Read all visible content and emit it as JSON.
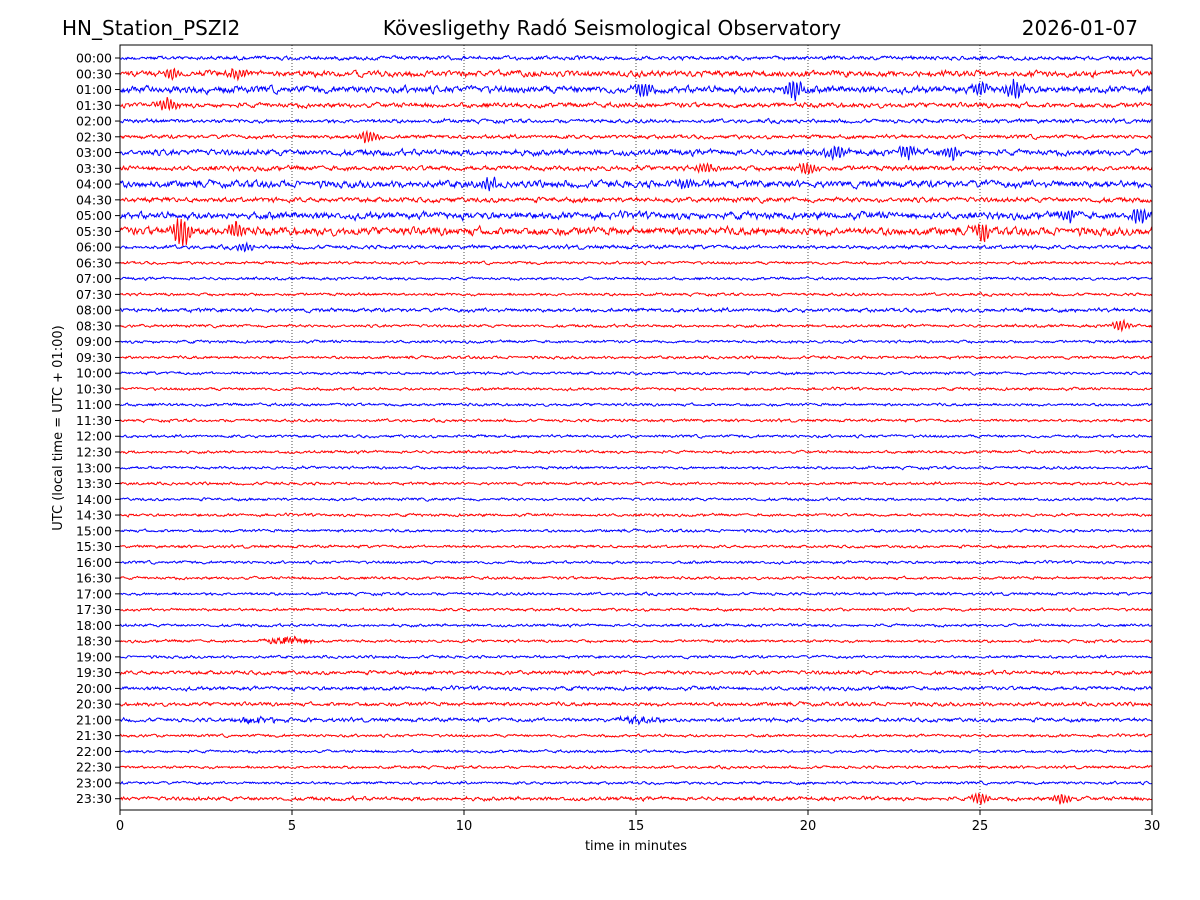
{
  "header": {
    "station": "HN_Station_PSZI2",
    "observatory": "Kövesligethy Radó Seismological Observatory",
    "date": "2026-01-07"
  },
  "chart_data": {
    "type": "line",
    "title": "Kövesligethy Radó Seismological Observatory",
    "xlabel": "time in minutes",
    "ylabel": "UTC (local time = UTC + 01:00)",
    "xlim": [
      0,
      30
    ],
    "x_ticks": [
      "0",
      "5",
      "10",
      "15",
      "20",
      "25",
      "30"
    ],
    "grid": "vertical dotted lines at 5, 10, 15, 20, 25",
    "colors": [
      "#0000ff",
      "#ff0000"
    ],
    "rows": [
      "00:00",
      "00:30",
      "01:00",
      "01:30",
      "02:00",
      "02:30",
      "03:00",
      "03:30",
      "04:00",
      "04:30",
      "05:00",
      "05:30",
      "06:00",
      "06:30",
      "07:00",
      "07:30",
      "08:00",
      "08:30",
      "09:00",
      "09:30",
      "10:00",
      "10:30",
      "11:00",
      "11:30",
      "12:00",
      "12:30",
      "13:00",
      "13:30",
      "14:00",
      "14:30",
      "15:00",
      "15:30",
      "16:00",
      "16:30",
      "17:00",
      "17:30",
      "18:00",
      "18:30",
      "19:00",
      "19:30",
      "20:00",
      "20:30",
      "21:00",
      "21:30",
      "22:00",
      "22:30",
      "23:00",
      "23:30"
    ],
    "activity": [
      2,
      4,
      5,
      3,
      2,
      2,
      4,
      3,
      5,
      3,
      5,
      6,
      2,
      1,
      1,
      1,
      2,
      1,
      1,
      1,
      1,
      1,
      1,
      1,
      1,
      1,
      1,
      1,
      1,
      1,
      1,
      1,
      1,
      1,
      1,
      1,
      1,
      1,
      1,
      2,
      2,
      2,
      2,
      1,
      1,
      1,
      1,
      2
    ],
    "events": [
      {
        "row": "00:30",
        "minute": 1.5,
        "amp": 6
      },
      {
        "row": "00:30",
        "minute": 3.4,
        "amp": 5
      },
      {
        "row": "01:00",
        "minute": 15.2,
        "amp": 7
      },
      {
        "row": "01:00",
        "minute": 19.6,
        "amp": 9
      },
      {
        "row": "01:00",
        "minute": 25.0,
        "amp": 7
      },
      {
        "row": "01:00",
        "minute": 26.0,
        "amp": 9
      },
      {
        "row": "01:30",
        "minute": 1.4,
        "amp": 6
      },
      {
        "row": "02:30",
        "minute": 7.2,
        "amp": 6
      },
      {
        "row": "03:00",
        "minute": 20.8,
        "amp": 7
      },
      {
        "row": "03:00",
        "minute": 22.9,
        "amp": 7
      },
      {
        "row": "03:00",
        "minute": 24.2,
        "amp": 6
      },
      {
        "row": "03:30",
        "minute": 17.0,
        "amp": 5
      },
      {
        "row": "03:30",
        "minute": 20.0,
        "amp": 6
      },
      {
        "row": "04:00",
        "minute": 10.7,
        "amp": 6
      },
      {
        "row": "04:00",
        "minute": 16.4,
        "amp": 5
      },
      {
        "row": "05:00",
        "minute": 27.6,
        "amp": 6
      },
      {
        "row": "05:00",
        "minute": 29.6,
        "amp": 8
      },
      {
        "row": "05:30",
        "minute": 1.8,
        "amp": 14
      },
      {
        "row": "05:30",
        "minute": 3.4,
        "amp": 8
      },
      {
        "row": "05:30",
        "minute": 25.1,
        "amp": 8
      },
      {
        "row": "06:00",
        "minute": 3.6,
        "amp": 4
      },
      {
        "row": "08:30",
        "minute": 29.1,
        "amp": 5
      },
      {
        "row": "18:30",
        "minute": 4.9,
        "amp": 4,
        "burst": true
      },
      {
        "row": "21:00",
        "minute": 4.0,
        "amp": 3,
        "burst": true
      },
      {
        "row": "21:00",
        "minute": 15.1,
        "amp": 4,
        "burst": true
      },
      {
        "row": "23:30",
        "minute": 25.0,
        "amp": 5
      },
      {
        "row": "23:30",
        "minute": 27.4,
        "amp": 5
      }
    ]
  }
}
